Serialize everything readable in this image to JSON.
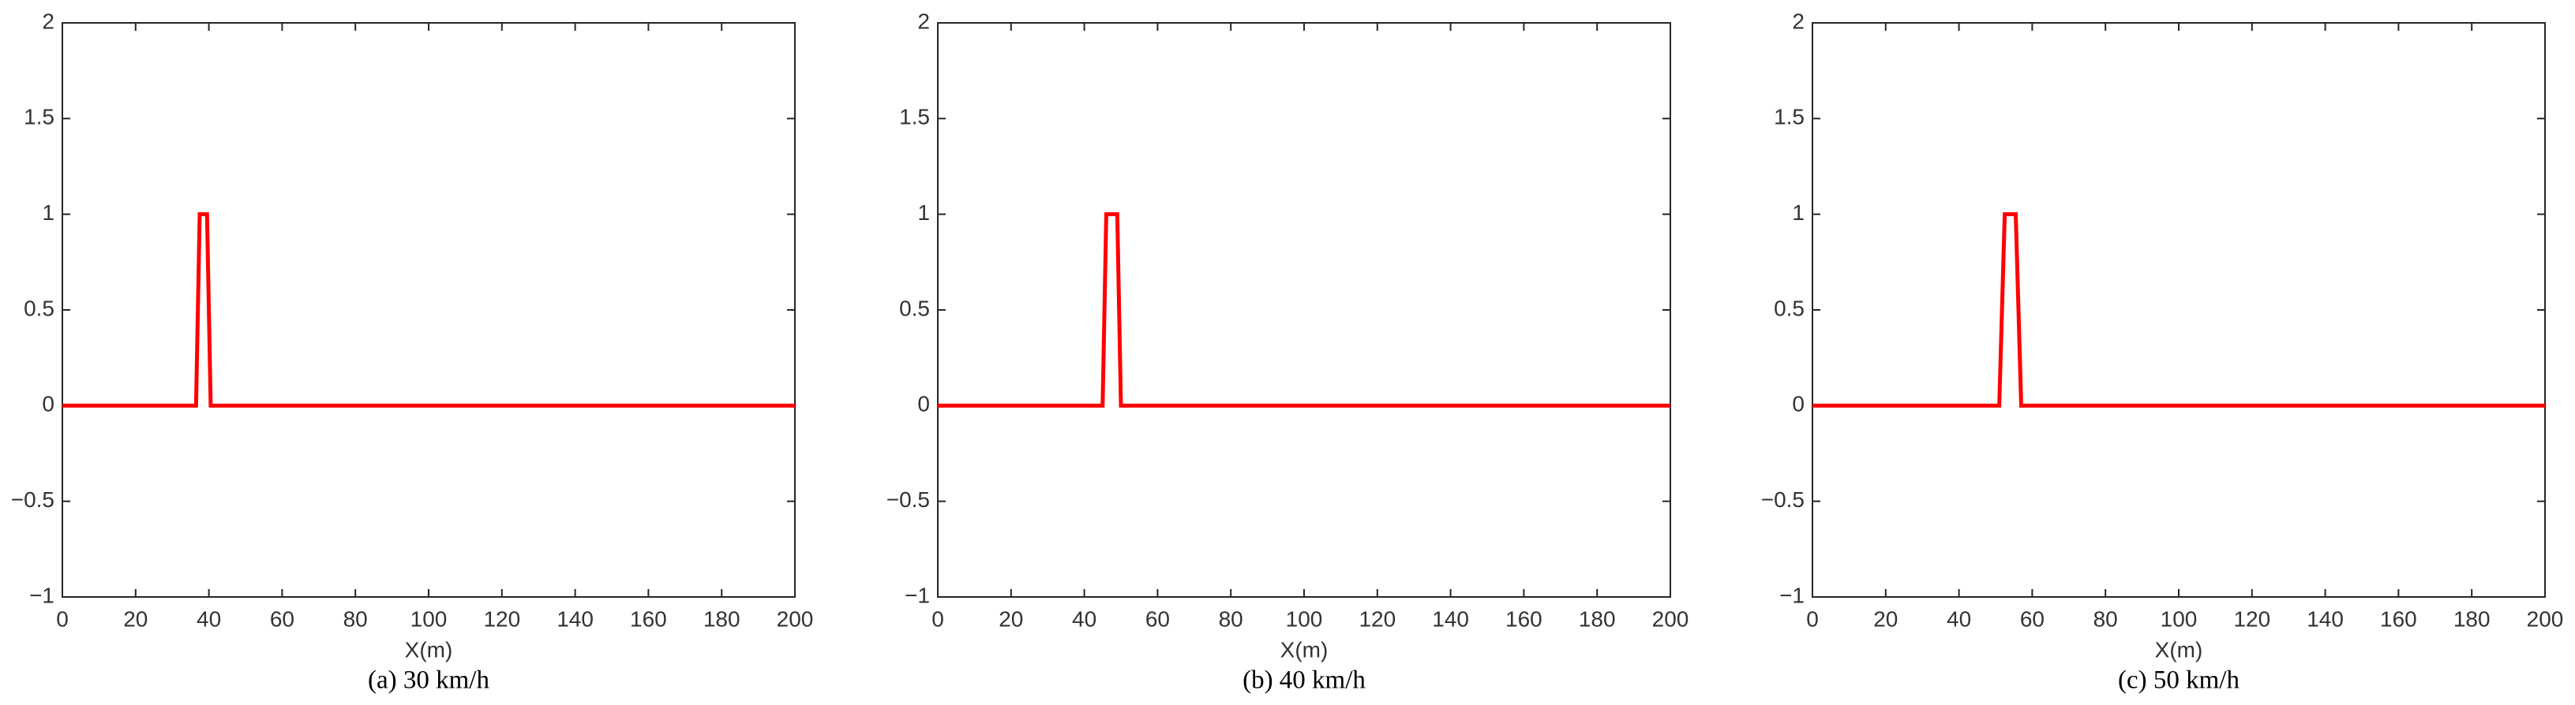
{
  "chart_data": [
    {
      "type": "line",
      "x_label": "X(m)",
      "caption": "(a) 30 km/h",
      "x": [
        0,
        36.5,
        37.5,
        39.5,
        40.5,
        200
      ],
      "values": [
        0,
        0,
        1,
        1,
        0,
        0
      ],
      "color": "#ff0000",
      "xlim": [
        0,
        200
      ],
      "xticks": [
        0,
        20,
        40,
        60,
        80,
        100,
        120,
        140,
        160,
        180,
        200
      ],
      "ylim": [
        -1,
        2
      ],
      "yticks": [
        {
          "value": -1,
          "label": "−1"
        },
        {
          "value": -0.5,
          "label": "−0.5"
        },
        0,
        0.5,
        1,
        1.5,
        2
      ]
    },
    {
      "type": "line",
      "x_label": "X(m)",
      "caption": "(b) 40 km/h",
      "x": [
        0,
        45,
        46,
        49,
        50,
        200
      ],
      "values": [
        0,
        0,
        1,
        1,
        0,
        0
      ],
      "color": "#ff0000",
      "xlim": [
        0,
        200
      ],
      "xticks": [
        0,
        20,
        40,
        60,
        80,
        100,
        120,
        140,
        160,
        180,
        200
      ],
      "ylim": [
        -1,
        2
      ],
      "yticks": [
        {
          "value": -1,
          "label": "−1"
        },
        {
          "value": -0.5,
          "label": "−0.5"
        },
        0,
        0.5,
        1,
        1.5,
        2
      ]
    },
    {
      "type": "line",
      "x_label": "X(m)",
      "caption": "(c) 50 km/h",
      "x": [
        0,
        51,
        52.5,
        55.5,
        57,
        200
      ],
      "values": [
        0,
        0,
        1,
        1,
        0,
        0
      ],
      "color": "#ff0000",
      "xlim": [
        0,
        200
      ],
      "xticks": [
        0,
        20,
        40,
        60,
        80,
        100,
        120,
        140,
        160,
        180,
        200
      ],
      "ylim": [
        -1,
        2
      ],
      "yticks": [
        {
          "value": -1,
          "label": "−1"
        },
        {
          "value": -0.5,
          "label": "−0.5"
        },
        0,
        0.5,
        1,
        1.5,
        2
      ]
    }
  ]
}
